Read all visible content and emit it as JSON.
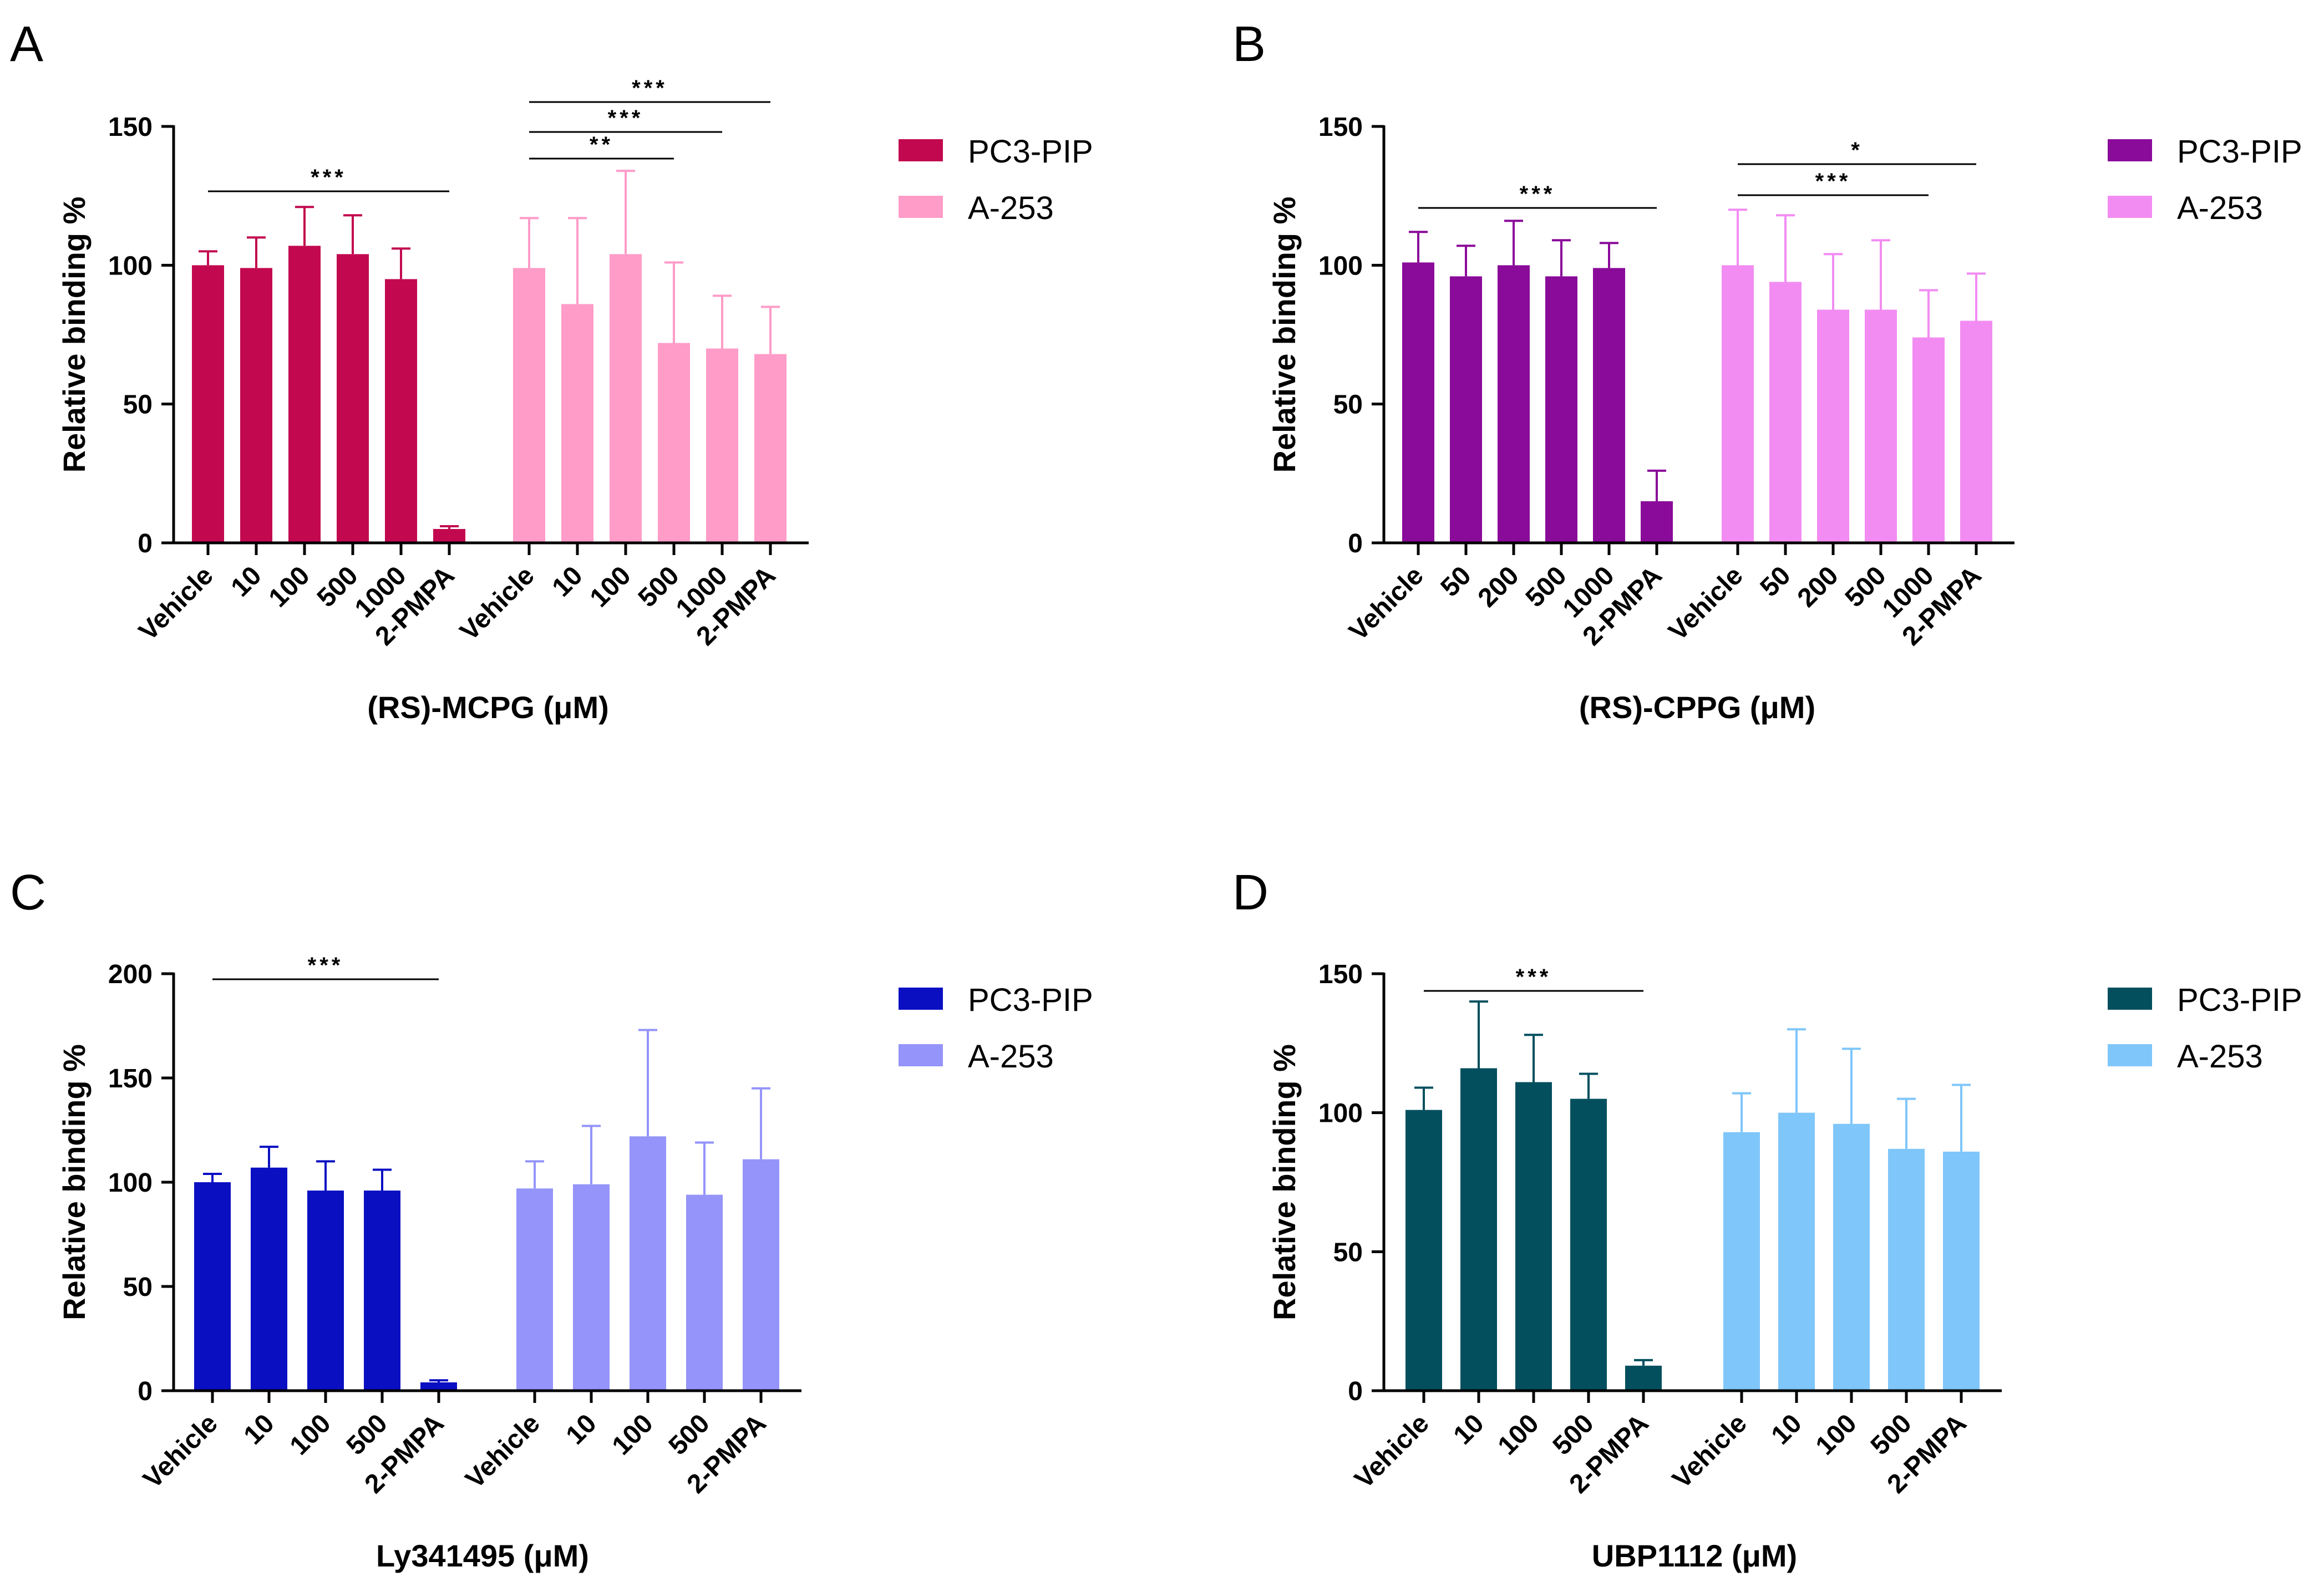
{
  "chart_data": [
    {
      "panel": "A",
      "type": "bar",
      "xlabel": "(RS)-MCPG (μM)",
      "ylabel": "Relative binding %",
      "ylim": [
        0,
        150
      ],
      "yticks": [
        0,
        50,
        100,
        150
      ],
      "legend_position": "right",
      "colors": [
        "#C2094F",
        "#FF9CC8"
      ],
      "series": [
        {
          "name": "PC3-PIP",
          "categories": [
            "Vehicle",
            "10",
            "100",
            "500",
            "1000",
            "2-PMPA"
          ],
          "values": [
            100,
            99,
            107,
            104,
            95,
            5
          ],
          "errors": [
            5,
            11,
            14,
            14,
            11,
            1
          ]
        },
        {
          "name": "A-253",
          "categories": [
            "Vehicle",
            "10",
            "100",
            "500",
            "1000",
            "2-PMPA"
          ],
          "values": [
            99,
            86,
            104,
            72,
            70,
            68
          ],
          "errors": [
            18,
            31,
            30,
            29,
            19,
            17
          ]
        }
      ],
      "significance": [
        {
          "series": 0,
          "from": 0,
          "to": 5,
          "label": "***"
        },
        {
          "series": 1,
          "from": 0,
          "to": 3,
          "label": "**"
        },
        {
          "series": 1,
          "from": 0,
          "to": 4,
          "label": "***"
        },
        {
          "series": 1,
          "from": 0,
          "to": 5,
          "label": "***"
        }
      ]
    },
    {
      "panel": "B",
      "type": "bar",
      "xlabel": "(RS)-CPPG (μM)",
      "ylabel": "Relative binding %",
      "ylim": [
        0,
        150
      ],
      "yticks": [
        0,
        50,
        100,
        150
      ],
      "legend_position": "right",
      "colors": [
        "#8A0A9A",
        "#F28CF2"
      ],
      "series": [
        {
          "name": "PC3-PIP",
          "categories": [
            "Vehicle",
            "50",
            "200",
            "500",
            "1000",
            "2-PMPA"
          ],
          "values": [
            101,
            96,
            100,
            96,
            99,
            15
          ],
          "errors": [
            11,
            11,
            16,
            13,
            9,
            11
          ]
        },
        {
          "name": "A-253",
          "categories": [
            "Vehicle",
            "50",
            "200",
            "500",
            "1000",
            "2-PMPA"
          ],
          "values": [
            100,
            94,
            84,
            84,
            74,
            80
          ],
          "errors": [
            20,
            24,
            20,
            25,
            17,
            17
          ]
        }
      ],
      "significance": [
        {
          "series": 0,
          "from": 0,
          "to": 5,
          "label": "***"
        },
        {
          "series": 1,
          "from": 0,
          "to": 4,
          "label": "***"
        },
        {
          "series": 1,
          "from": 0,
          "to": 5,
          "label": "*"
        }
      ]
    },
    {
      "panel": "C",
      "type": "bar",
      "xlabel": "Ly341495 (μM)",
      "ylabel": "Relative binding %",
      "ylim": [
        0,
        200
      ],
      "yticks": [
        0,
        50,
        100,
        150,
        200
      ],
      "legend_position": "right",
      "colors": [
        "#0A0FC2",
        "#9494FA"
      ],
      "series": [
        {
          "name": "PC3-PIP",
          "categories": [
            "Vehicle",
            "10",
            "100",
            "500",
            "2-PMPA"
          ],
          "values": [
            100,
            107,
            96,
            96,
            4
          ],
          "errors": [
            4,
            10,
            14,
            10,
            1
          ]
        },
        {
          "name": "A-253",
          "categories": [
            "Vehicle",
            "10",
            "100",
            "500",
            "2-PMPA"
          ],
          "values": [
            97,
            99,
            122,
            94,
            111
          ],
          "errors": [
            13,
            28,
            51,
            25,
            34
          ]
        }
      ],
      "significance": [
        {
          "series": 0,
          "from": 0,
          "to": 4,
          "label": "***"
        }
      ]
    },
    {
      "panel": "D",
      "type": "bar",
      "xlabel": "UBP1112 (μM)",
      "ylabel": "Relative binding %",
      "ylim": [
        0,
        150
      ],
      "yticks": [
        0,
        50,
        100,
        150
      ],
      "legend_position": "right",
      "colors": [
        "#034F5E",
        "#7FC6FA"
      ],
      "series": [
        {
          "name": "PC3-PIP",
          "categories": [
            "Vehicle",
            "10",
            "100",
            "500",
            "2-PMPA"
          ],
          "values": [
            101,
            116,
            111,
            105,
            9
          ],
          "errors": [
            8,
            24,
            17,
            9,
            2
          ]
        },
        {
          "name": "A-253",
          "categories": [
            "Vehicle",
            "10",
            "100",
            "500",
            "2-PMPA"
          ],
          "values": [
            93,
            100,
            96,
            87,
            86
          ],
          "errors": [
            14,
            30,
            27,
            18,
            24
          ]
        }
      ],
      "significance": [
        {
          "series": 0,
          "from": 0,
          "to": 4,
          "label": "***"
        }
      ]
    }
  ]
}
